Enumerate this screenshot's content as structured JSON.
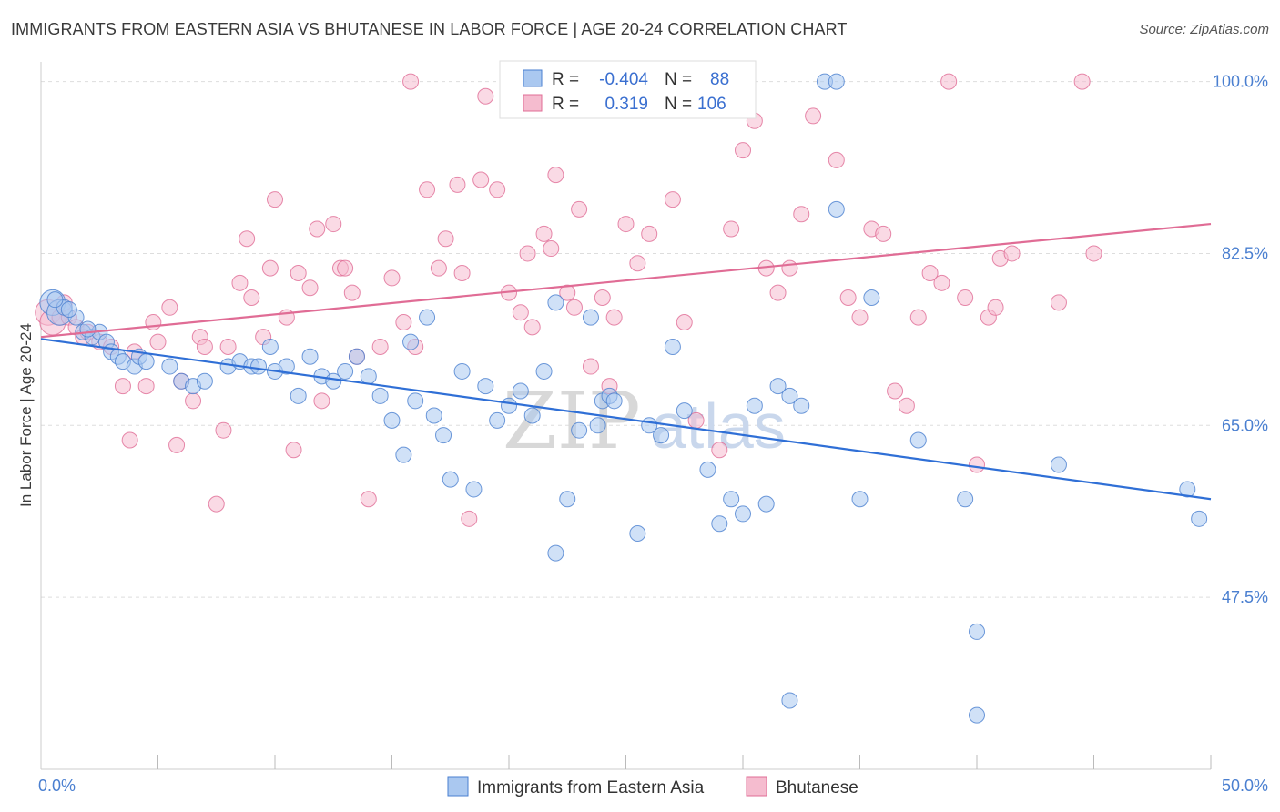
{
  "title": "IMMIGRANTS FROM EASTERN ASIA VS BHUTANESE IN LABOR FORCE | AGE 20-24 CORRELATION CHART",
  "source": "Source: ZipAtlas.com",
  "watermark_zip": "ZIP",
  "watermark_atlas": "atlas",
  "colors": {
    "blue": "#4a7fd0",
    "blue_fill": "#aac8f0",
    "pink": "#e06c95",
    "pink_fill": "#f5bccf"
  },
  "legend": {
    "rows": [
      {
        "r_label": "R =",
        "r_value": "-0.404",
        "n_label": "N =",
        "n_value": "88"
      },
      {
        "r_label": "R =",
        "r_value": "0.319",
        "n_label": "N =",
        "n_value": "106"
      }
    ]
  },
  "chart_data": {
    "type": "scatter",
    "xlabel": "",
    "ylabel": "In Labor Force | Age 20-24",
    "xlim": [
      0,
      50
    ],
    "ylim": [
      30,
      102
    ],
    "x_tick_labels": [
      "0.0%",
      "50.0%"
    ],
    "y_ticks": [
      47.5,
      65.0,
      82.5,
      100.0
    ],
    "y_tick_labels": [
      "47.5%",
      "65.0%",
      "82.5%",
      "100.0%"
    ],
    "legend_position": "top-center",
    "series": [
      {
        "name": "Immigrants from Eastern Asia",
        "trend": {
          "x": [
            0,
            50
          ],
          "y": [
            73.8,
            57.5
          ]
        },
        "points": [
          [
            0.5,
            77.5
          ],
          [
            0.8,
            76.5
          ],
          [
            1.0,
            77.0
          ],
          [
            1.5,
            76.0
          ],
          [
            1.8,
            74.5
          ],
          [
            2.2,
            74.0
          ],
          [
            2.5,
            74.5
          ],
          [
            2.8,
            73.5
          ],
          [
            3.0,
            72.5
          ],
          [
            3.3,
            72.0
          ],
          [
            3.5,
            71.5
          ],
          [
            4.0,
            71.0
          ],
          [
            4.2,
            72.0
          ],
          [
            4.5,
            71.5
          ],
          [
            5.5,
            71.0
          ],
          [
            6.0,
            69.5
          ],
          [
            6.5,
            69.0
          ],
          [
            7.0,
            69.5
          ],
          [
            8.0,
            71.0
          ],
          [
            8.5,
            71.5
          ],
          [
            9.0,
            71.0
          ],
          [
            9.3,
            71.0
          ],
          [
            9.8,
            73.0
          ],
          [
            10.0,
            70.5
          ],
          [
            10.5,
            71.0
          ],
          [
            11.0,
            68.0
          ],
          [
            11.5,
            72.0
          ],
          [
            12.0,
            70.0
          ],
          [
            12.5,
            69.5
          ],
          [
            13.0,
            70.5
          ],
          [
            13.5,
            72.0
          ],
          [
            14.0,
            70.0
          ],
          [
            14.5,
            68.0
          ],
          [
            15.0,
            65.5
          ],
          [
            15.5,
            62.0
          ],
          [
            15.8,
            73.5
          ],
          [
            16.0,
            67.5
          ],
          [
            16.5,
            76.0
          ],
          [
            16.8,
            66.0
          ],
          [
            17.5,
            59.5
          ],
          [
            17.2,
            64.0
          ],
          [
            18.0,
            70.5
          ],
          [
            18.5,
            58.5
          ],
          [
            19.0,
            69.0
          ],
          [
            19.5,
            65.5
          ],
          [
            20.0,
            67.0
          ],
          [
            20.5,
            68.5
          ],
          [
            21.0,
            66.0
          ],
          [
            21.5,
            70.5
          ],
          [
            22.0,
            77.5
          ],
          [
            22.5,
            57.5
          ],
          [
            22.0,
            52.0
          ],
          [
            23.0,
            64.5
          ],
          [
            23.5,
            76.0
          ],
          [
            23.8,
            65.0
          ],
          [
            24.0,
            67.5
          ],
          [
            24.3,
            68.0
          ],
          [
            24.5,
            67.5
          ],
          [
            25.5,
            54.0
          ],
          [
            26.0,
            65.0
          ],
          [
            26.5,
            64.0
          ],
          [
            27.0,
            73.0
          ],
          [
            27.5,
            66.5
          ],
          [
            28.5,
            60.5
          ],
          [
            29.0,
            55.0
          ],
          [
            29.5,
            57.5
          ],
          [
            30.0,
            56.0
          ],
          [
            30.5,
            67.0
          ],
          [
            31.0,
            57.0
          ],
          [
            31.5,
            69.0
          ],
          [
            32.0,
            68.0
          ],
          [
            32.5,
            67.0
          ],
          [
            32.0,
            37.0
          ],
          [
            33.5,
            100.0
          ],
          [
            34.0,
            100.0
          ],
          [
            34.0,
            87.0
          ],
          [
            35.0,
            57.5
          ],
          [
            35.5,
            78.0
          ],
          [
            37.5,
            63.5
          ],
          [
            39.5,
            57.5
          ],
          [
            40.0,
            44.0
          ],
          [
            40.0,
            35.5
          ],
          [
            43.5,
            61.0
          ],
          [
            49.0,
            58.5
          ],
          [
            49.5,
            55.5
          ],
          [
            0.6,
            77.8
          ],
          [
            1.2,
            76.8
          ],
          [
            2.0,
            74.8
          ]
        ]
      },
      {
        "name": "Bhutanese",
        "trend": {
          "x": [
            0,
            50
          ],
          "y": [
            74.0,
            85.5
          ]
        },
        "points": [
          [
            0.3,
            76.5
          ],
          [
            0.5,
            75.5
          ],
          [
            0.8,
            76.0
          ],
          [
            1.0,
            77.5
          ],
          [
            1.2,
            76.0
          ],
          [
            1.5,
            75.0
          ],
          [
            1.8,
            74.0
          ],
          [
            2.0,
            74.5
          ],
          [
            2.5,
            73.5
          ],
          [
            3.0,
            73.0
          ],
          [
            3.5,
            69.0
          ],
          [
            3.8,
            63.5
          ],
          [
            4.0,
            72.5
          ],
          [
            4.5,
            69.0
          ],
          [
            4.8,
            75.5
          ],
          [
            5.0,
            73.5
          ],
          [
            5.5,
            77.0
          ],
          [
            5.8,
            63.0
          ],
          [
            6.0,
            69.5
          ],
          [
            6.5,
            67.5
          ],
          [
            6.8,
            74.0
          ],
          [
            7.0,
            73.0
          ],
          [
            7.5,
            57.0
          ],
          [
            7.8,
            64.5
          ],
          [
            8.0,
            73.0
          ],
          [
            8.5,
            79.5
          ],
          [
            8.8,
            84.0
          ],
          [
            9.0,
            78.0
          ],
          [
            9.5,
            74.0
          ],
          [
            9.8,
            81.0
          ],
          [
            10.0,
            88.0
          ],
          [
            10.5,
            76.0
          ],
          [
            10.8,
            62.5
          ],
          [
            11.0,
            80.5
          ],
          [
            11.5,
            79.0
          ],
          [
            11.8,
            85.0
          ],
          [
            12.0,
            67.5
          ],
          [
            12.5,
            85.5
          ],
          [
            12.8,
            81.0
          ],
          [
            13.0,
            81.0
          ],
          [
            13.3,
            78.5
          ],
          [
            13.5,
            72.0
          ],
          [
            14.0,
            57.5
          ],
          [
            14.5,
            73.0
          ],
          [
            15.0,
            80.0
          ],
          [
            15.5,
            75.5
          ],
          [
            15.8,
            100.0
          ],
          [
            16.0,
            73.0
          ],
          [
            16.5,
            89.0
          ],
          [
            17.0,
            81.0
          ],
          [
            17.3,
            84.0
          ],
          [
            17.8,
            89.5
          ],
          [
            18.0,
            80.5
          ],
          [
            18.3,
            55.5
          ],
          [
            18.8,
            90.0
          ],
          [
            19.0,
            98.5
          ],
          [
            19.5,
            89.0
          ],
          [
            20.0,
            78.5
          ],
          [
            20.5,
            76.5
          ],
          [
            20.8,
            82.5
          ],
          [
            21.0,
            75.0
          ],
          [
            21.5,
            84.5
          ],
          [
            21.8,
            83.0
          ],
          [
            22.0,
            90.5
          ],
          [
            22.5,
            78.5
          ],
          [
            22.8,
            77.0
          ],
          [
            23.0,
            87.0
          ],
          [
            23.5,
            71.0
          ],
          [
            24.0,
            78.0
          ],
          [
            24.3,
            69.0
          ],
          [
            24.5,
            76.0
          ],
          [
            25.0,
            85.5
          ],
          [
            25.5,
            81.5
          ],
          [
            26.0,
            84.5
          ],
          [
            27.0,
            88.0
          ],
          [
            27.5,
            75.5
          ],
          [
            28.0,
            65.5
          ],
          [
            29.0,
            62.5
          ],
          [
            29.5,
            85.0
          ],
          [
            30.0,
            93.0
          ],
          [
            31.0,
            81.0
          ],
          [
            31.5,
            78.5
          ],
          [
            32.0,
            81.0
          ],
          [
            32.5,
            86.5
          ],
          [
            33.0,
            96.5
          ],
          [
            34.0,
            92.0
          ],
          [
            34.5,
            78.0
          ],
          [
            35.0,
            76.0
          ],
          [
            35.5,
            85.0
          ],
          [
            36.0,
            84.5
          ],
          [
            36.5,
            68.5
          ],
          [
            37.0,
            67.0
          ],
          [
            37.5,
            76.0
          ],
          [
            38.0,
            80.5
          ],
          [
            38.5,
            79.5
          ],
          [
            38.8,
            100.0
          ],
          [
            39.5,
            78.0
          ],
          [
            40.0,
            61.0
          ],
          [
            40.5,
            76.0
          ],
          [
            40.8,
            77.0
          ],
          [
            41.0,
            82.0
          ],
          [
            41.5,
            82.5
          ],
          [
            43.5,
            77.5
          ],
          [
            44.5,
            100.0
          ],
          [
            45.0,
            82.5
          ],
          [
            30.5,
            96.0
          ]
        ]
      }
    ]
  },
  "bottom_legend": {
    "series1_label": "Immigrants from Eastern Asia",
    "series2_label": "Bhutanese"
  }
}
